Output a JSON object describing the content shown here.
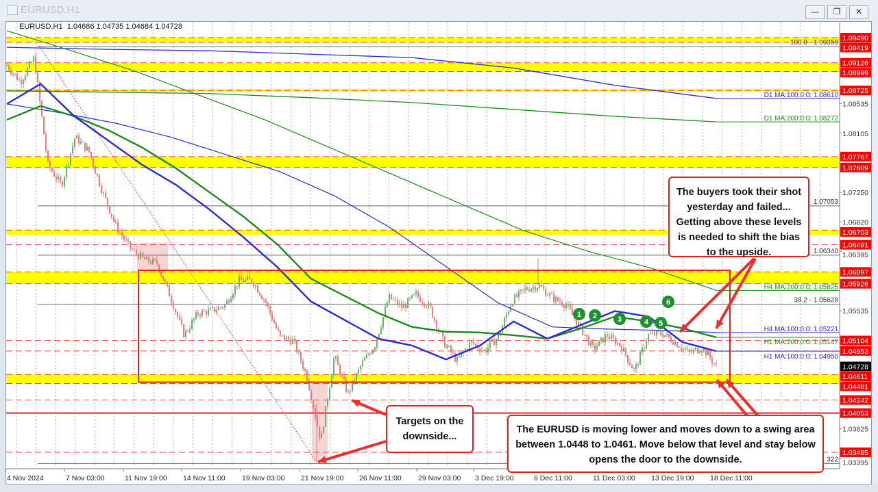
{
  "window": {
    "title": "EURUSD.H1",
    "buttons": {
      "minimize": "—",
      "restore": "❐",
      "close": "✕"
    }
  },
  "header": {
    "symbol": "EURUSD,H1",
    "open": "1.04686",
    "high": "1.04735",
    "low": "1.04684",
    "close": "1.04728"
  },
  "annotations": {
    "buyers": "The buyers took their shot yesterday and failed... Getting above these levels is needed to shift the bias to the upside.",
    "targets": "Targets on the downside...",
    "swing": "The EURUSD is moving lower and moves down to a swing area between 1.0448 to 1.0461.  Move below that level and stay below opens the door to the downside.",
    "markers": [
      "1",
      "2",
      "3",
      "4",
      "5",
      "6"
    ]
  },
  "chart_data": {
    "type": "candlestick",
    "instrument": "EURUSD,H1",
    "ylim": [
      1.0333,
      1.0975
    ],
    "x_tick_labels": [
      "4 Nov 2024",
      "7 Nov 03:00",
      "11 Nov 19:00",
      "14 Nov 11:00",
      "19 Nov 03:00",
      "21 Nov 19:00",
      "26 Nov 11:00",
      "29 Nov 03:00",
      "3 Dec 19:00",
      "6 Dec 11:00",
      "11 Dec 03:00",
      "13 Dec 19:00",
      "18 Dec 11:00"
    ],
    "y_tick_labels": [
      "1.08535",
      "1.08105",
      "1.07250",
      "1.06820",
      "1.06395",
      "1.05535",
      "1.03825",
      "1.03395"
    ],
    "last_price": "1.04728",
    "price_path": [
      1.0909,
      1.0885,
      1.092,
      1.0765,
      1.0735,
      1.0805,
      1.0785,
      1.0726,
      1.0676,
      1.0645,
      1.0628,
      1.0622,
      1.0573,
      1.0518,
      1.055,
      1.0553,
      1.0562,
      1.0597,
      1.0597,
      1.0565,
      1.0516,
      1.051,
      1.0458,
      1.0365,
      1.0488,
      1.0433,
      1.0476,
      1.0505,
      1.0573,
      1.0558,
      1.0577,
      1.0558,
      1.0508,
      1.0481,
      1.0508,
      1.0495,
      1.0515,
      1.0567,
      1.0585,
      1.059,
      1.0572,
      1.0562,
      1.053,
      1.0498,
      1.0518,
      1.0503,
      1.0466,
      1.0518,
      1.0521,
      1.0508,
      1.0492,
      1.05,
      1.0473
    ],
    "levels": [
      {
        "price": "1.09490",
        "style": "dashed"
      },
      {
        "price": "1.09419",
        "style": "dashed"
      },
      {
        "price": "1.09126",
        "style": "dashed"
      },
      {
        "price": "1.08999",
        "style": "dashed"
      },
      {
        "price": "1.08725",
        "style": "dashed"
      },
      {
        "price": "1.07767",
        "style": "dashed"
      },
      {
        "price": "1.07609",
        "style": "dashed"
      },
      {
        "price": "1.06703",
        "style": "dashed"
      },
      {
        "price": "1.06491",
        "style": "dashed"
      },
      {
        "price": "1.06097",
        "style": "dashed"
      },
      {
        "price": "1.05926",
        "style": "dashed"
      },
      {
        "price": "1.05104",
        "style": "dashed"
      },
      {
        "price": "1.04953",
        "style": "dashed"
      },
      {
        "price": "1.04611",
        "style": "dashed"
      },
      {
        "price": "1.04481",
        "style": "dashed"
      },
      {
        "price": "1.04242",
        "style": "dashed"
      },
      {
        "price": "1.04053",
        "style": "solid"
      },
      {
        "price": "1.03485",
        "style": "dashed"
      }
    ],
    "zones": [
      [
        1.0949,
        1.09419
      ],
      [
        1.09126,
        1.08999
      ],
      [
        1.08745,
        1.08705
      ],
      [
        1.07767,
        1.07609
      ],
      [
        1.06703,
        1.06633
      ],
      [
        1.06097,
        1.05926
      ],
      [
        1.04611,
        1.04481
      ]
    ],
    "fib_levels": [
      {
        "label": "100.0 - 1.09359",
        "price": 1.09359
      },
      {
        "label": "1.07053",
        "price": 1.07053
      },
      {
        "label": "1.06340",
        "price": 1.0634
      },
      {
        "label": "38.2 - 1.05628",
        "price": 1.05628
      },
      {
        "label": "322",
        "price": 1.03322
      }
    ],
    "moving_averages": [
      {
        "name": "D1 MA:100:0:0: 1.08610",
        "color": "#2a2ad6",
        "width": 1.3,
        "values": [
          1.0935,
          1.0932,
          1.093,
          1.0925,
          1.092,
          1.0905,
          1.088,
          1.0861
        ]
      },
      {
        "name": "D1 MA:200:0:0: 1.08272",
        "color": "#1e8a1e",
        "width": 1.3,
        "values": [
          1.0872,
          1.087,
          1.0868,
          1.0862,
          1.0855,
          1.0845,
          1.0835,
          1.0827
        ]
      },
      {
        "name": "H4 MA:200:0:0: 1.05825",
        "color": "#1e8a1e",
        "width": 1.2,
        "values": [
          1.0959,
          1.093,
          1.09,
          1.0865,
          1.083,
          1.079,
          1.075,
          1.071,
          1.067,
          1.064,
          1.0615,
          1.0583
        ]
      },
      {
        "name": "H4 MA:100:0:0: 1.05221",
        "color": "#2a2ad6",
        "width": 1.2,
        "values": [
          1.0853,
          1.084,
          1.0825,
          1.0805,
          1.078,
          1.0755,
          1.072,
          1.0675,
          1.062,
          1.0565,
          1.053,
          1.0527,
          1.0525,
          1.0522
        ]
      },
      {
        "name": "H1 MA:200:0:0: 1.05147",
        "color": "#1e8a1e",
        "width": 2.4,
        "values": [
          1.083,
          1.085,
          1.0835,
          1.0815,
          1.079,
          1.076,
          1.0725,
          1.069,
          1.065,
          1.06,
          1.0575,
          1.055,
          1.053,
          1.0523,
          1.0522,
          1.0518,
          1.0513,
          1.0528,
          1.0545,
          1.0538,
          1.0528,
          1.0515
        ]
      },
      {
        "name": "H1 MA:100:0:0: 1.04950",
        "color": "#2a2ad6",
        "width": 2.4,
        "values": [
          1.0853,
          1.0882,
          1.0835,
          1.08,
          1.0765,
          1.0736,
          1.07,
          1.066,
          1.0617,
          1.0567,
          1.054,
          1.0513,
          1.0503,
          1.0483,
          1.0503,
          1.0538,
          1.0513,
          1.0533,
          1.0553,
          1.0545,
          1.0508,
          1.0495
        ]
      }
    ],
    "swing_box": [
      1.0612,
      1.045
    ],
    "colors": {
      "bull": "#6fae6f",
      "bear": "#ee7a7a",
      "level": "#e33",
      "zone": "#ffff00",
      "label_bg": "#ff0000",
      "annotation_border": "#e0201c"
    }
  }
}
